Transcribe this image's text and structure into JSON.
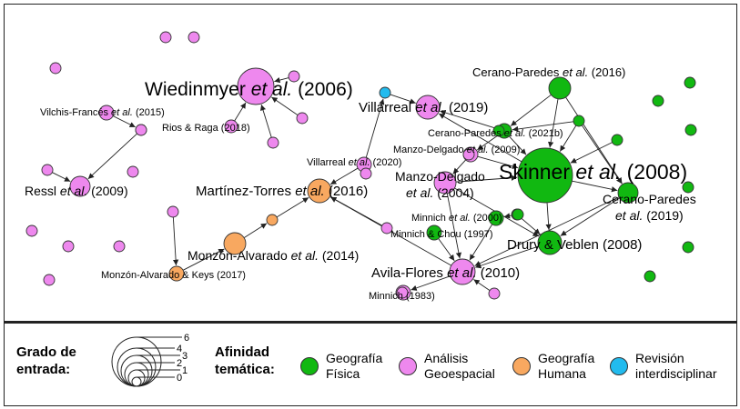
{
  "colors": {
    "geo_fisica": "#11b811",
    "analisis_geoespacial": "#ee88ee",
    "geo_humana": "#f8a860",
    "revision": "#22bbee",
    "node_stroke": "#333333",
    "edge": "#222222"
  },
  "nodes": [
    {
      "id": "wiedinmyer",
      "cat": "analisis_geoespacial",
      "r": 20
    },
    {
      "id": "skinner",
      "cat": "geo_fisica",
      "r": 30
    },
    {
      "id": "villarreal2019",
      "cat": "analisis_geoespacial",
      "r": 13
    },
    {
      "id": "martinez-torres",
      "cat": "geo_humana",
      "r": 13
    },
    {
      "id": "monzon-alvarado",
      "cat": "geo_humana",
      "r": 12
    },
    {
      "id": "avila-flores",
      "cat": "analisis_geoespacial",
      "r": 14
    },
    {
      "id": "drury-veblen",
      "cat": "geo_fisica",
      "r": 13
    },
    {
      "id": "cerano2016",
      "cat": "geo_fisica",
      "r": 12
    },
    {
      "id": "cerano2019",
      "cat": "geo_fisica",
      "r": 11
    },
    {
      "id": "manzo2004",
      "cat": "analisis_geoespacial",
      "r": 12
    },
    {
      "id": "cerano2021b",
      "cat": "geo_fisica",
      "r": 8
    },
    {
      "id": "manzo2009",
      "cat": "analisis_geoespacial",
      "r": 8
    },
    {
      "id": "villarreal2020",
      "cat": "analisis_geoespacial",
      "r": 8
    },
    {
      "id": "minnich2000",
      "cat": "geo_fisica",
      "r": 8
    },
    {
      "id": "minnich-chou",
      "cat": "geo_fisica",
      "r": 8
    },
    {
      "id": "minnich1983",
      "cat": "analisis_geoespacial",
      "r": 8
    },
    {
      "id": "monzon-keys",
      "cat": "geo_humana",
      "r": 8
    },
    {
      "id": "vilchis-frances",
      "cat": "analisis_geoespacial",
      "r": 8
    },
    {
      "id": "rios-raga",
      "cat": "analisis_geoespacial",
      "r": 7
    },
    {
      "id": "ressl",
      "cat": "analisis_geoespacial",
      "r": 11
    },
    {
      "id": "revision1",
      "cat": "revision",
      "r": 6
    },
    {
      "id": "g1",
      "cat": "geo_fisica",
      "r": 6
    },
    {
      "id": "g2",
      "cat": "geo_fisica",
      "r": 6
    },
    {
      "id": "g3",
      "cat": "geo_fisica",
      "r": 6
    },
    {
      "id": "g4",
      "cat": "geo_fisica",
      "r": 6
    },
    {
      "id": "g5",
      "cat": "geo_fisica",
      "r": 6
    },
    {
      "id": "g6",
      "cat": "geo_fisica",
      "r": 6
    },
    {
      "id": "g7",
      "cat": "geo_fisica",
      "r": 6
    },
    {
      "id": "g8",
      "cat": "geo_fisica",
      "r": 6
    },
    {
      "id": "g9",
      "cat": "geo_fisica",
      "r": 6
    },
    {
      "id": "g10",
      "cat": "geo_fisica",
      "r": 6
    },
    {
      "id": "g11",
      "cat": "geo_fisica",
      "r": 6
    },
    {
      "id": "p1",
      "cat": "analisis_geoespacial",
      "r": 6
    },
    {
      "id": "p2",
      "cat": "analisis_geoespacial",
      "r": 6
    },
    {
      "id": "p3",
      "cat": "analisis_geoespacial",
      "r": 6
    },
    {
      "id": "p4",
      "cat": "analisis_geoespacial",
      "r": 6
    },
    {
      "id": "p5",
      "cat": "analisis_geoespacial",
      "r": 6
    },
    {
      "id": "p6",
      "cat": "analisis_geoespacial",
      "r": 6
    },
    {
      "id": "p7",
      "cat": "analisis_geoespacial",
      "r": 6
    },
    {
      "id": "p8",
      "cat": "analisis_geoespacial",
      "r": 6
    },
    {
      "id": "p9",
      "cat": "analisis_geoespacial",
      "r": 6
    },
    {
      "id": "p10",
      "cat": "analisis_geoespacial",
      "r": 6
    },
    {
      "id": "p11",
      "cat": "analisis_geoespacial",
      "r": 6
    },
    {
      "id": "p12",
      "cat": "analisis_geoespacial",
      "r": 6
    },
    {
      "id": "p13",
      "cat": "analisis_geoespacial",
      "r": 6
    },
    {
      "id": "p14",
      "cat": "analisis_geoespacial",
      "r": 6
    },
    {
      "id": "p15",
      "cat": "analisis_geoespacial",
      "r": 6
    },
    {
      "id": "p16",
      "cat": "analisis_geoespacial",
      "r": 6
    },
    {
      "id": "p17",
      "cat": "analisis_geoespacial",
      "r": 6
    },
    {
      "id": "p18",
      "cat": "analisis_geoespacial",
      "r": 6
    },
    {
      "id": "p19",
      "cat": "analisis_geoespacial",
      "r": 6
    },
    {
      "id": "p20",
      "cat": "analisis_geoespacial",
      "r": 6
    },
    {
      "id": "o1",
      "cat": "geo_humana",
      "r": 6
    }
  ],
  "edges": [
    [
      "rios-raga",
      "wiedinmyer"
    ],
    [
      "p4",
      "wiedinmyer"
    ],
    [
      "p5",
      "wiedinmyer"
    ],
    [
      "p6",
      "wiedinmyer"
    ],
    [
      "vilchis-frances",
      "p3"
    ],
    [
      "p7",
      "ressl"
    ],
    [
      "p8",
      "ressl"
    ],
    [
      "villarreal2020",
      "martinez-torres"
    ],
    [
      "p9",
      "martinez-torres"
    ],
    [
      "avila-flores",
      "martinez-torres"
    ],
    [
      "villarreal2020",
      "revision1"
    ],
    [
      "revision1",
      "villarreal2019"
    ],
    [
      "cerano2021b",
      "villarreal2019"
    ],
    [
      "skinner",
      "villarreal2019"
    ],
    [
      "o1",
      "martinez-torres"
    ],
    [
      "monzon-alvarado",
      "o1"
    ],
    [
      "monzon-keys",
      "monzon-alvarado"
    ],
    [
      "p10",
      "monzon-keys"
    ],
    [
      "cerano2021b",
      "skinner"
    ],
    [
      "cerano2016",
      "cerano2021b"
    ],
    [
      "g2",
      "cerano2021b"
    ],
    [
      "g2",
      "skinner"
    ],
    [
      "g2",
      "cerano2019"
    ],
    [
      "cerano2016",
      "skinner"
    ],
    [
      "g3",
      "skinner"
    ],
    [
      "cerano2016",
      "cerano2019"
    ],
    [
      "manzo2009",
      "skinner"
    ],
    [
      "manzo2009",
      "manzo2004"
    ],
    [
      "cerano2021b",
      "manzo2009"
    ],
    [
      "manzo2004",
      "skinner"
    ],
    [
      "manzo2004",
      "drury-veblen"
    ],
    [
      "skinner",
      "drury-veblen"
    ],
    [
      "cerano2019",
      "drury-veblen"
    ],
    [
      "cerano2019",
      "avila-flores"
    ],
    [
      "g1",
      "drury-veblen"
    ],
    [
      "g1",
      "minnich2000"
    ],
    [
      "manzo2004",
      "avila-flores"
    ],
    [
      "minnich2000",
      "avila-flores"
    ],
    [
      "minnich-chou",
      "avila-flores"
    ],
    [
      "p11",
      "avila-flores"
    ],
    [
      "avila-flores",
      "minnich1983"
    ],
    [
      "drury-veblen",
      "avila-flores"
    ],
    [
      "skinner",
      "cerano2019"
    ]
  ],
  "labels": [
    {
      "id": "lbl-wiedinmyer",
      "pre": "Wiedinmyer",
      "it": "et al.",
      "post": "(2006)",
      "size": 21
    },
    {
      "id": "lbl-skinner",
      "pre": "Skinner",
      "it": "et al.",
      "post": "(2008)",
      "size": 23
    },
    {
      "id": "lbl-villarreal2019",
      "pre": "Villarreal",
      "it": "et al.",
      "post": "(2019)",
      "size": 15
    },
    {
      "id": "lbl-martinez",
      "pre": "Martínez-Torres",
      "it": "et al.",
      "post": "(2016)",
      "size": 15
    },
    {
      "id": "lbl-monzon",
      "pre": "Monzón-Alvarado",
      "it": "et al.",
      "post": "(2014)",
      "size": 14
    },
    {
      "id": "lbl-avila",
      "pre": "Avila-Flores",
      "it": "et al.",
      "post": "(2010)",
      "size": 15
    },
    {
      "id": "lbl-drury",
      "pre": "Drury & Veblen (2008)",
      "it": "",
      "post": "",
      "size": 15
    },
    {
      "id": "lbl-cerano2016",
      "pre": "Cerano-Paredes",
      "it": "et al.",
      "post": "(2016)",
      "size": 13
    },
    {
      "id": "lbl-cerano2019-a",
      "pre": "Cerano-Paredes",
      "it": "",
      "post": "",
      "size": 14
    },
    {
      "id": "lbl-cerano2019-b",
      "pre": "",
      "it": "et al.",
      "post": "(2019)",
      "size": 14
    },
    {
      "id": "lbl-manzo2004-a",
      "pre": "Manzo-Delgado",
      "it": "",
      "post": "",
      "size": 14
    },
    {
      "id": "lbl-manzo2004-b",
      "pre": "",
      "it": "et al.",
      "post": "(2004)",
      "size": 14
    },
    {
      "id": "lbl-cerano2021b",
      "pre": "Cerano-Paredes",
      "it": "et al.",
      "post": "(2021b)",
      "size": 11
    },
    {
      "id": "lbl-manzo2009",
      "pre": "Manzo-Delgado",
      "it": "et al.",
      "post": "(2009)",
      "size": 11
    },
    {
      "id": "lbl-villarreal2020",
      "pre": "Villarreal",
      "it": "et al.",
      "post": "(2020)",
      "size": 11
    },
    {
      "id": "lbl-minnich2000",
      "pre": "Minnich",
      "it": "et al.",
      "post": "(2000)",
      "size": 11
    },
    {
      "id": "lbl-minnich-chou",
      "pre": "Minnich & Chou (1997)",
      "it": "",
      "post": "",
      "size": 11
    },
    {
      "id": "lbl-minnich1983",
      "pre": "Minnich (1983)",
      "it": "",
      "post": "",
      "size": 11
    },
    {
      "id": "lbl-monzon-keys",
      "pre": "Monzón-Alvarado & Keys (2017)",
      "it": "",
      "post": "",
      "size": 11
    },
    {
      "id": "lbl-vilchis",
      "pre": "Vilchis-Francés",
      "it": "et al.",
      "post": "(2015)",
      "size": 11
    },
    {
      "id": "lbl-rios",
      "pre": "Rios & Raga (2018)",
      "it": "",
      "post": "",
      "size": 11
    },
    {
      "id": "lbl-ressl",
      "pre": "Ressl",
      "it": "et al.",
      "post": "(2009)",
      "size": 14
    }
  ],
  "legend": {
    "degree_title": "Grado de entrada:",
    "degree_values": [
      "6",
      "4",
      "3",
      "2",
      "1",
      "0"
    ],
    "affinity_title": "Afinidad temática:",
    "categories": [
      {
        "key": "geo_fisica",
        "label": "Geografía Física"
      },
      {
        "key": "analisis_geoespacial",
        "label": "Análisis Geoespacial"
      },
      {
        "key": "geo_humana",
        "label": "Geografía Humana"
      },
      {
        "key": "revision",
        "label": "Revisión interdisciplinar"
      }
    ]
  }
}
